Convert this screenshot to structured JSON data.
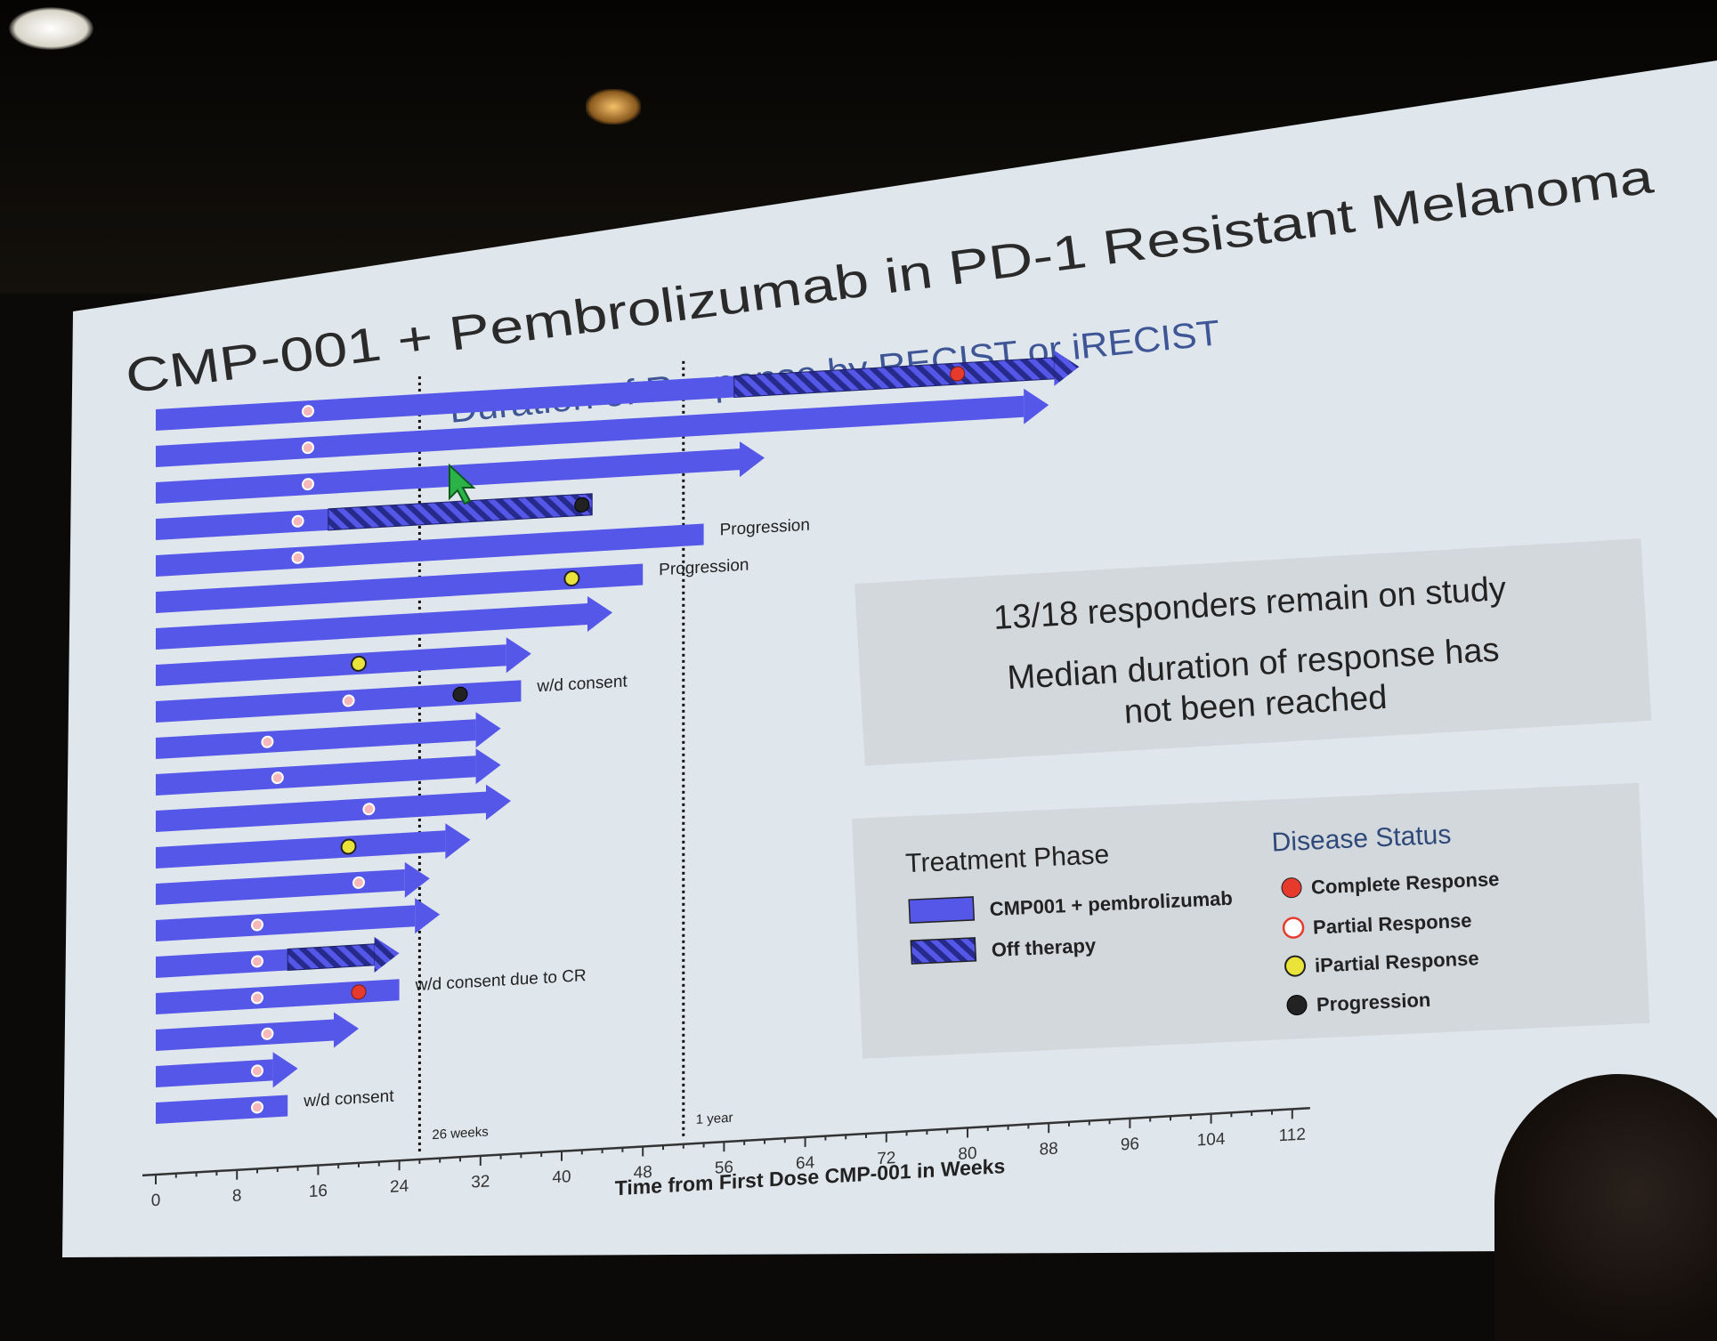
{
  "slide": {
    "title": "CMP-001 + Pembrolizumab in PD-1 Resistant Melanoma",
    "subtitle": "Duration of Response by RECIST or iRECIST"
  },
  "info_box": {
    "line1": "13/18 responders remain on study",
    "line2": "Median duration of response has",
    "line3": "not been reached"
  },
  "legend": {
    "treatment_title": "Treatment Phase",
    "treatment_items": [
      "CMP001 + pembrolizumab",
      "Off therapy"
    ],
    "status_title": "Disease Status",
    "status_items": [
      "Complete Response",
      "Partial Response",
      "iPartial Response",
      "Progression"
    ]
  },
  "colors": {
    "bar": "#5557e8",
    "hatch_stripe": "#262a8a",
    "complete_response": "#e53a2c",
    "partial_response": "#f6b8b8",
    "ipartial_response": "#e9e33a",
    "progression": "#222222",
    "slide_background": "#dfe6ec",
    "title_text": "#2a2a2a",
    "subtitle_text": "#3e5596"
  },
  "chart_data": {
    "type": "swimmer",
    "xlabel": "Time from First Dose CMP-001 in Weeks",
    "xlim": [
      0,
      112
    ],
    "x_ticks": [
      0,
      8,
      16,
      24,
      32,
      40,
      48,
      56,
      64,
      72,
      80,
      88,
      96,
      104,
      112
    ],
    "reference_lines": [
      {
        "x": 26,
        "label": "26 weeks"
      },
      {
        "x": 52,
        "label": "1 year"
      }
    ],
    "patients": [
      {
        "start": 0,
        "end": 91,
        "arrow": true,
        "off_start": 57,
        "events": [
          {
            "x": 15,
            "type": "partial"
          },
          {
            "x": 79,
            "type": "complete"
          }
        ],
        "annotation": ""
      },
      {
        "start": 0,
        "end": 88,
        "arrow": true,
        "events": [
          {
            "x": 15,
            "type": "partial"
          }
        ],
        "annotation": ""
      },
      {
        "start": 0,
        "end": 60,
        "arrow": true,
        "events": [
          {
            "x": 15,
            "type": "partial"
          }
        ],
        "annotation": ""
      },
      {
        "start": 0,
        "end": 43,
        "arrow": false,
        "off_start": 17,
        "off_end": 43,
        "events": [
          {
            "x": 14,
            "type": "partial"
          },
          {
            "x": 42,
            "type": "progression"
          }
        ],
        "annotation": ""
      },
      {
        "start": 0,
        "end": 54,
        "arrow": false,
        "events": [
          {
            "x": 14,
            "type": "partial"
          }
        ],
        "annotation": "Progression"
      },
      {
        "start": 0,
        "end": 48,
        "arrow": false,
        "events": [
          {
            "x": 41,
            "type": "ipartial"
          }
        ],
        "annotation": "Progression"
      },
      {
        "start": 0,
        "end": 45,
        "arrow": true,
        "events": [],
        "annotation": ""
      },
      {
        "start": 0,
        "end": 37,
        "arrow": true,
        "events": [
          {
            "x": 20,
            "type": "ipartial"
          }
        ],
        "annotation": ""
      },
      {
        "start": 0,
        "end": 36,
        "arrow": false,
        "events": [
          {
            "x": 19,
            "type": "partial"
          },
          {
            "x": 30,
            "type": "progression"
          }
        ],
        "annotation": "w/d consent"
      },
      {
        "start": 0,
        "end": 34,
        "arrow": true,
        "events": [
          {
            "x": 11,
            "type": "partial"
          }
        ],
        "annotation": ""
      },
      {
        "start": 0,
        "end": 34,
        "arrow": true,
        "events": [
          {
            "x": 12,
            "type": "partial"
          }
        ],
        "annotation": ""
      },
      {
        "start": 0,
        "end": 35,
        "arrow": true,
        "events": [
          {
            "x": 21,
            "type": "partial"
          }
        ],
        "annotation": ""
      },
      {
        "start": 0,
        "end": 31,
        "arrow": true,
        "events": [
          {
            "x": 19,
            "type": "ipartial"
          }
        ],
        "annotation": ""
      },
      {
        "start": 0,
        "end": 27,
        "arrow": true,
        "events": [
          {
            "x": 20,
            "type": "partial"
          }
        ],
        "annotation": ""
      },
      {
        "start": 0,
        "end": 28,
        "arrow": true,
        "events": [
          {
            "x": 10,
            "type": "partial"
          }
        ],
        "annotation": ""
      },
      {
        "start": 0,
        "end": 24,
        "arrow": true,
        "off_start": 13,
        "events": [
          {
            "x": 10,
            "type": "partial"
          }
        ],
        "annotation": ""
      },
      {
        "start": 0,
        "end": 24,
        "arrow": false,
        "events": [
          {
            "x": 10,
            "type": "partial"
          },
          {
            "x": 20,
            "type": "complete"
          }
        ],
        "annotation": "w/d consent due to CR"
      },
      {
        "start": 0,
        "end": 20,
        "arrow": true,
        "events": [
          {
            "x": 11,
            "type": "partial"
          }
        ],
        "annotation": ""
      },
      {
        "start": 0,
        "end": 14,
        "arrow": true,
        "events": [
          {
            "x": 10,
            "type": "partial"
          }
        ],
        "annotation": ""
      },
      {
        "start": 0,
        "end": 13,
        "arrow": false,
        "events": [
          {
            "x": 10,
            "type": "partial"
          }
        ],
        "annotation": "w/d consent"
      }
    ]
  }
}
